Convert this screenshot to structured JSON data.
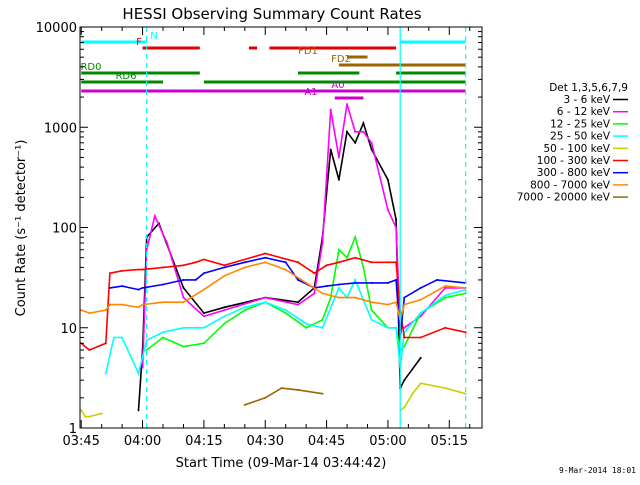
{
  "chart_data": {
    "type": "line",
    "title": "HESSI Observing Summary Count Rates",
    "xlabel": "Start Time (09-Mar-14 03:44:42)",
    "ylabel": "Count Rate (s⁻¹ detector⁻¹)",
    "y_scale": "log",
    "ylim": [
      1,
      10000
    ],
    "y_ticks": [
      {
        "value": 1,
        "label": "1"
      },
      {
        "value": 10,
        "label": "10"
      },
      {
        "value": 100,
        "label": "100"
      },
      {
        "value": 1000,
        "label": "1000"
      },
      {
        "value": 10000,
        "label": "10000"
      }
    ],
    "xlim": [
      "03:44:42",
      "05:23:00"
    ],
    "x_ticks": [
      "03:45",
      "04:00",
      "04:15",
      "04:30",
      "04:45",
      "05:00",
      "05:15"
    ],
    "legend_title": "Det 1,3,5,6,7,9",
    "legend_position": "right",
    "grid": false,
    "series": [
      {
        "name": "3 - 6 keV",
        "color": "#000000",
        "x": [
          "03:45",
          "03:55",
          "03:59",
          "04:00",
          "04:01",
          "04:04",
          "04:10",
          "04:15",
          "04:20",
          "04:30",
          "04:38",
          "04:42",
          "04:44",
          "04:46",
          "04:48",
          "04:50",
          "04:52",
          "04:54",
          "04:56",
          "05:00",
          "05:02",
          "05:03",
          "05:04",
          "05:08",
          "05:14",
          "05:19"
        ],
        "y": [
          null,
          null,
          1.5,
          6,
          80,
          110,
          25,
          14,
          16,
          20,
          18,
          25,
          80,
          600,
          300,
          900,
          700,
          1100,
          600,
          300,
          120,
          2.5,
          3,
          5,
          null,
          null
        ]
      },
      {
        "name": "6 - 12 keV",
        "color": "#ff00ff",
        "x": [
          "03:45",
          "03:55",
          "03:59",
          "04:00",
          "04:01",
          "04:03",
          "04:06",
          "04:10",
          "04:15",
          "04:20",
          "04:30",
          "04:38",
          "04:42",
          "04:44",
          "04:46",
          "04:48",
          "04:50",
          "04:52",
          "04:54",
          "04:56",
          "05:00",
          "05:02",
          "05:03",
          "05:04",
          "05:08",
          "05:14",
          "05:19"
        ],
        "y": [
          null,
          null,
          null,
          4,
          60,
          130,
          70,
          20,
          13,
          15,
          20,
          17,
          22,
          70,
          1500,
          500,
          1700,
          900,
          900,
          700,
          150,
          100,
          10,
          10,
          13,
          25,
          25
        ]
      },
      {
        "name": "12 - 25 keV",
        "color": "#00ff00",
        "x": [
          "03:45",
          "03:55",
          "03:59",
          "04:01",
          "04:05",
          "04:10",
          "04:15",
          "04:20",
          "04:25",
          "04:30",
          "04:35",
          "04:40",
          "04:44",
          "04:46",
          "04:48",
          "04:50",
          "04:52",
          "04:54",
          "04:56",
          "05:00",
          "05:02",
          "05:03",
          "05:04",
          "05:08",
          "05:14",
          "05:19"
        ],
        "y": [
          null,
          null,
          null,
          6,
          8,
          6.5,
          7,
          11,
          15,
          18,
          14,
          10,
          12,
          20,
          60,
          50,
          80,
          40,
          15,
          10,
          10,
          6,
          6.5,
          14,
          20,
          22
        ]
      },
      {
        "name": "25 - 50 keV",
        "color": "#00ffff",
        "x": [
          "03:45",
          "03:51",
          "03:53",
          "03:55",
          "03:59",
          "04:01",
          "04:05",
          "04:10",
          "04:15",
          "04:20",
          "04:25",
          "04:30",
          "04:35",
          "04:40",
          "04:44",
          "04:48",
          "04:50",
          "04:52",
          "04:56",
          "05:00",
          "05:02",
          "05:03",
          "05:04",
          "05:08",
          "05:14",
          "05:19"
        ],
        "y": [
          null,
          3.5,
          8,
          8,
          3.5,
          7.5,
          9,
          10,
          10,
          13,
          16,
          18,
          15,
          11,
          10,
          25,
          20,
          30,
          12,
          10,
          10,
          4,
          9,
          14,
          21,
          24
        ]
      },
      {
        "name": "50 - 100 keV",
        "color": "#cccc00",
        "x": [
          "03:45",
          "03:46",
          "03:47",
          "03:50",
          "03:52",
          "03:55",
          "04:15",
          "04:30",
          "04:44",
          "04:48",
          "05:00",
          "05:02",
          "05:03",
          "05:04",
          "05:06",
          "05:08",
          "05:14",
          "05:19"
        ],
        "y": [
          1.5,
          1.3,
          1.3,
          1.4,
          null,
          null,
          null,
          null,
          null,
          null,
          null,
          null,
          1.5,
          1.6,
          2.2,
          2.8,
          2.5,
          2.2
        ]
      },
      {
        "name": "100 - 300 keV",
        "color": "#ff0000",
        "x": [
          "03:45",
          "03:47",
          "03:51",
          "03:52",
          "03:55",
          "03:59",
          "04:00",
          "04:05",
          "04:10",
          "04:13",
          "04:15",
          "04:20",
          "04:30",
          "04:38",
          "04:42",
          "04:45",
          "04:48",
          "04:52",
          "04:56",
          "05:00",
          "05:02",
          "05:03",
          "05:04",
          "05:08",
          "05:14",
          "05:19"
        ],
        "y": [
          7,
          6,
          7,
          35,
          37,
          38,
          38,
          40,
          42,
          45,
          48,
          42,
          55,
          45,
          35,
          42,
          45,
          50,
          45,
          45,
          45,
          15,
          8,
          8,
          10,
          9
        ]
      },
      {
        "name": "300 - 800 keV",
        "color": "#0000ff",
        "x": [
          "03:45",
          "03:47",
          "03:51",
          "03:52",
          "03:55",
          "03:59",
          "04:00",
          "04:05",
          "04:10",
          "04:13",
          "04:15",
          "04:20",
          "04:25",
          "04:30",
          "04:35",
          "04:38",
          "04:42",
          "04:45",
          "04:48",
          "04:52",
          "04:56",
          "05:00",
          "05:02",
          "05:03",
          "05:04",
          "05:08",
          "05:12",
          "05:19"
        ],
        "y": [
          null,
          null,
          null,
          25,
          26,
          24,
          25,
          27,
          30,
          30,
          35,
          40,
          45,
          50,
          45,
          30,
          25,
          26,
          27,
          28,
          28,
          28,
          30,
          8,
          20,
          25,
          30,
          28
        ]
      },
      {
        "name": "800 - 7000 keV",
        "color": "#ff8800",
        "x": [
          "03:45",
          "03:47",
          "03:51",
          "03:52",
          "03:55",
          "03:59",
          "04:00",
          "04:05",
          "04:10",
          "04:15",
          "04:20",
          "04:25",
          "04:30",
          "04:35",
          "04:40",
          "04:44",
          "04:48",
          "04:52",
          "04:56",
          "05:00",
          "05:02",
          "05:03",
          "05:04",
          "05:08",
          "05:14",
          "05:19"
        ],
        "y": [
          15,
          14,
          15,
          17,
          17,
          16,
          17,
          18,
          18,
          24,
          33,
          40,
          45,
          38,
          28,
          22,
          20,
          20,
          18,
          17,
          18,
          12,
          17,
          19,
          26,
          25
        ]
      },
      {
        "name": "7000 - 20000 keV",
        "color": "#996600",
        "x": [
          "03:45",
          "04:25",
          "04:30",
          "04:34",
          "04:38",
          "04:44",
          "05:15"
        ],
        "y": [
          null,
          1.7,
          2.0,
          2.5,
          2.4,
          2.2,
          null
        ]
      }
    ],
    "flags": [
      {
        "label": "N",
        "color": "#00ffff",
        "segments": [
          [
            "03:45",
            "04:01"
          ],
          [
            "05:03",
            "05:19"
          ]
        ]
      },
      {
        "label": "F",
        "color": "#dd0000",
        "segments": [
          [
            "04:00",
            "04:14"
          ],
          [
            "04:26",
            "04:28"
          ],
          [
            "04:31",
            "05:02"
          ]
        ]
      },
      {
        "label": "FD1",
        "color": "#996600",
        "segments": [
          [
            "04:50",
            "04:55"
          ]
        ]
      },
      {
        "label": "FD2",
        "color": "#996600",
        "segments": [
          [
            "04:48",
            "05:19"
          ]
        ]
      },
      {
        "label": "RD0",
        "color": "#008800",
        "segments": [
          [
            "03:45",
            "04:14"
          ],
          [
            "04:38",
            "04:53"
          ],
          [
            "05:02",
            "05:19"
          ]
        ]
      },
      {
        "label": "RD6",
        "color": "#008800",
        "segments": [
          [
            "03:45",
            "04:05"
          ],
          [
            "04:15",
            "05:19"
          ]
        ]
      },
      {
        "label": "A0",
        "color": "#cc00cc",
        "segments": [
          [
            "03:45",
            "05:19"
          ]
        ]
      },
      {
        "label": "A1",
        "color": "#cc00cc",
        "segments": [
          [
            "04:47",
            "04:54"
          ]
        ]
      }
    ],
    "vertical_markers": [
      {
        "time": "04:01",
        "color": "#00ffff",
        "style": "dashed"
      },
      {
        "time": "05:03",
        "color": "#00ffff",
        "style": "solid"
      },
      {
        "time": "05:19",
        "color": "#00ffff",
        "style": "dashed"
      }
    ]
  },
  "footer_date": "9-Mar-2014 18:01"
}
